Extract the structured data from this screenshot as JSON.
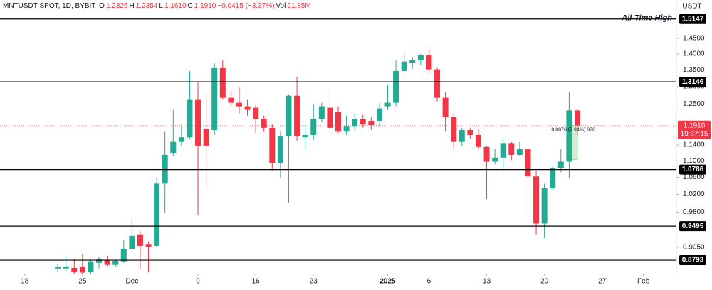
{
  "chart_data": {
    "type": "candlestick",
    "title": "MNTUSDT SPOT, 1D, BYBIT",
    "header_values": [
      {
        "key": "O",
        "value": "1.2325"
      },
      {
        "key": "H",
        "value": "1.2354"
      },
      {
        "key": "L",
        "value": "1.1610"
      },
      {
        "key": "C",
        "value": "1.1910"
      }
    ],
    "change": "−0.0415 (−3.37%)",
    "volume_key": "Vol",
    "volume": "21.85M",
    "y_axis_unit": "USDT",
    "log_scale": true,
    "grid": false,
    "up_color": "#22ab94",
    "down_color": "#f23645",
    "ylim": [
      0.853,
      1.581
    ],
    "yticks": [
      {
        "value": 1.45,
        "label": "1.4500"
      },
      {
        "value": 1.4,
        "label": "1.4000"
      },
      {
        "value": 1.35,
        "label": "1.3500"
      },
      {
        "value": 1.3,
        "label": "1.3000"
      },
      {
        "value": 1.25,
        "label": "1.2500"
      },
      {
        "value": 1.14,
        "label": "1.1400"
      },
      {
        "value": 1.1,
        "label": "1.1000"
      },
      {
        "value": 1.06,
        "label": "1.0600"
      },
      {
        "value": 1.02,
        "label": "1.0200"
      },
      {
        "value": 0.98,
        "label": "0.9800"
      },
      {
        "value": 0.905,
        "label": "0.9050"
      }
    ],
    "xlim": [
      "2024-11-15",
      "2025-02-05"
    ],
    "xticks": [
      {
        "value": "2024-11-18",
        "label": "18"
      },
      {
        "value": "2024-11-25",
        "label": "25"
      },
      {
        "value": "2024-12-01",
        "label": "Dec"
      },
      {
        "value": "2024-12-09",
        "label": "9"
      },
      {
        "value": "2024-12-16",
        "label": "16"
      },
      {
        "value": "2024-12-23",
        "label": "23"
      },
      {
        "value": "2025-01-01",
        "label": "2025"
      },
      {
        "value": "2025-01-06",
        "label": "6"
      },
      {
        "value": "2025-01-13",
        "label": "13"
      },
      {
        "value": "2025-01-20",
        "label": "20"
      },
      {
        "value": "2025-01-27",
        "label": "27"
      },
      {
        "value": "2025-02-01",
        "label": "Feb"
      }
    ],
    "x": [
      "2024-11-22",
      "2024-11-23",
      "2024-11-24",
      "2024-11-25",
      "2024-11-26",
      "2024-11-27",
      "2024-11-28",
      "2024-11-29",
      "2024-11-30",
      "2024-12-01",
      "2024-12-02",
      "2024-12-03",
      "2024-12-04",
      "2024-12-05",
      "2024-12-06",
      "2024-12-07",
      "2024-12-08",
      "2024-12-09",
      "2024-12-10",
      "2024-12-11",
      "2024-12-12",
      "2024-12-13",
      "2024-12-14",
      "2024-12-15",
      "2024-12-16",
      "2024-12-17",
      "2024-12-18",
      "2024-12-19",
      "2024-12-20",
      "2024-12-21",
      "2024-12-22",
      "2024-12-23",
      "2024-12-24",
      "2024-12-25",
      "2024-12-26",
      "2024-12-27",
      "2024-12-28",
      "2024-12-29",
      "2024-12-30",
      "2024-12-31",
      "2025-01-01",
      "2025-01-02",
      "2025-01-03",
      "2025-01-04",
      "2025-01-05",
      "2025-01-06",
      "2025-01-07",
      "2025-01-08",
      "2025-01-09",
      "2025-01-10",
      "2025-01-11",
      "2025-01-12",
      "2025-01-13",
      "2025-01-14",
      "2025-01-15",
      "2025-01-16",
      "2025-01-17",
      "2025-01-18",
      "2025-01-19",
      "2025-01-20",
      "2025-01-21",
      "2025-01-22",
      "2025-01-23",
      "2025-01-24"
    ],
    "open": [
      0.863,
      0.863,
      0.864,
      0.867,
      0.856,
      0.874,
      0.88,
      0.87,
      0.877,
      0.902,
      0.932,
      0.912,
      0.908,
      1.045,
      1.12,
      1.148,
      1.16,
      1.264,
      1.181,
      1.179,
      1.358,
      1.268,
      1.254,
      1.244,
      1.24,
      1.208,
      1.185,
      1.094,
      1.162,
      1.274,
      1.16,
      1.166,
      1.208,
      1.24,
      1.228,
      1.175,
      1.19,
      1.208,
      1.204,
      1.204,
      1.244,
      1.254,
      1.347,
      1.373,
      1.38,
      1.396,
      1.352,
      1.268,
      1.214,
      1.148,
      1.179,
      1.166,
      1.135,
      1.098,
      1.108,
      1.145,
      1.115,
      1.129,
      1.062,
      0.955,
      1.034,
      1.083,
      1.098,
      1.2325
    ],
    "high": [
      0.872,
      0.888,
      0.882,
      0.891,
      0.881,
      0.885,
      0.888,
      0.882,
      0.92,
      0.967,
      0.939,
      0.917,
      1.059,
      1.175,
      1.234,
      1.194,
      1.347,
      1.315,
      1.278,
      1.373,
      1.38,
      1.288,
      1.298,
      1.264,
      1.248,
      1.218,
      1.194,
      1.175,
      1.278,
      1.33,
      1.194,
      1.25,
      1.254,
      1.284,
      1.244,
      1.218,
      1.224,
      1.22,
      1.214,
      1.254,
      1.305,
      1.38,
      1.409,
      1.391,
      1.4,
      1.413,
      1.358,
      1.284,
      1.224,
      1.185,
      1.185,
      1.181,
      1.138,
      1.129,
      1.157,
      1.148,
      1.148,
      1.138,
      1.076,
      1.045,
      1.087,
      1.129,
      1.284,
      1.2354
    ],
    "low": [
      0.857,
      0.857,
      0.853,
      0.853,
      0.853,
      0.863,
      0.868,
      0.866,
      0.874,
      0.895,
      0.863,
      0.856,
      0.905,
      0.978,
      1.111,
      1.138,
      1.157,
      0.973,
      1.029,
      1.166,
      1.264,
      1.244,
      1.224,
      1.218,
      1.171,
      1.175,
      1.076,
      1.059,
      1.001,
      1.151,
      1.129,
      1.153,
      1.2,
      1.173,
      1.171,
      1.166,
      1.179,
      1.185,
      1.179,
      1.188,
      1.234,
      1.244,
      1.341,
      1.354,
      1.365,
      1.341,
      1.258,
      1.175,
      1.129,
      1.138,
      1.157,
      1.129,
      1.009,
      1.091,
      1.076,
      1.102,
      1.111,
      1.059,
      0.932,
      0.924,
      1.031,
      1.072,
      1.059,
      1.161
    ],
    "close": [
      0.866,
      0.867,
      0.856,
      0.855,
      0.877,
      0.881,
      0.87,
      0.878,
      0.902,
      0.929,
      0.908,
      0.906,
      1.045,
      1.115,
      1.148,
      1.16,
      1.264,
      1.138,
      1.138,
      1.358,
      1.268,
      1.254,
      1.244,
      1.234,
      1.208,
      1.185,
      1.094,
      1.162,
      1.274,
      1.162,
      1.166,
      1.208,
      1.244,
      1.185,
      1.175,
      1.19,
      1.208,
      1.194,
      1.192,
      1.238,
      1.254,
      1.347,
      1.376,
      1.38,
      1.396,
      1.352,
      1.268,
      1.214,
      1.148,
      1.179,
      1.166,
      1.135,
      1.098,
      1.108,
      1.145,
      1.115,
      1.129,
      1.062,
      0.955,
      1.034,
      1.083,
      1.098,
      1.2325,
      1.191
    ],
    "levels": [
      {
        "value": 1.5147,
        "label": "1.5147",
        "text": "All-Time High"
      },
      {
        "value": 1.3146,
        "label": "1.3146"
      },
      {
        "value": 1.0786,
        "label": "1.0786"
      },
      {
        "value": 0.9495,
        "label": "0.9495"
      },
      {
        "value": 0.8793,
        "label": "0.8793"
      }
    ],
    "current_price": {
      "value": 1.191,
      "label": "1.1910",
      "countdown": "19:37:15"
    },
    "measure": {
      "low": 1.1034,
      "high": 1.191,
      "label": "0.0876 (7.94%) 876"
    }
  }
}
